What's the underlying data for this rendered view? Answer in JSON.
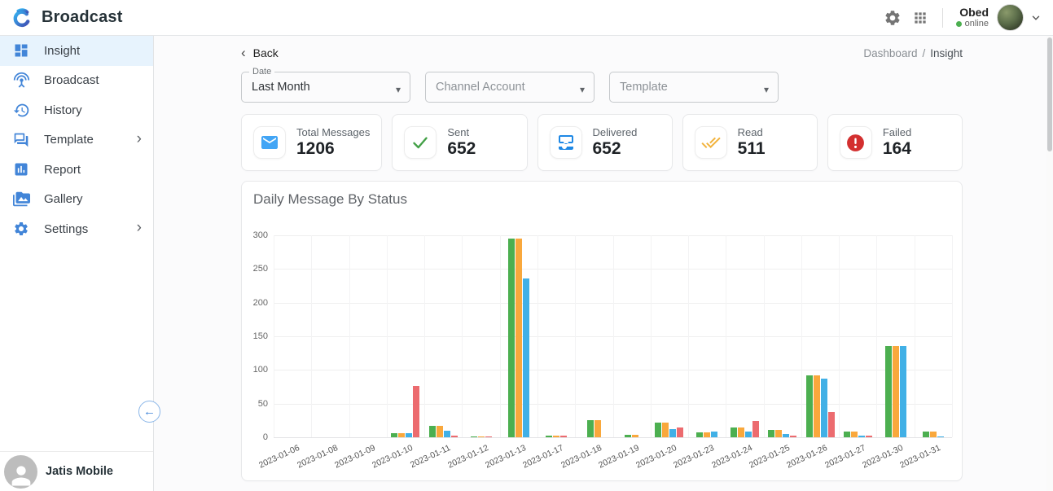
{
  "header": {
    "app_title": "Broadcast",
    "user_name": "Obed",
    "user_status": "online"
  },
  "sidebar": {
    "items": [
      {
        "label": "Insight",
        "icon": "dashboard-icon",
        "active": true,
        "expandable": false
      },
      {
        "label": "Broadcast",
        "icon": "antenna-icon",
        "active": false,
        "expandable": false
      },
      {
        "label": "History",
        "icon": "history-icon",
        "active": false,
        "expandable": false
      },
      {
        "label": "Template",
        "icon": "chat-bubbles-icon",
        "active": false,
        "expandable": true
      },
      {
        "label": "Report",
        "icon": "bar-chart-icon",
        "active": false,
        "expandable": false
      },
      {
        "label": "Gallery",
        "icon": "gallery-icon",
        "active": false,
        "expandable": false
      },
      {
        "label": "Settings",
        "icon": "gear-icon",
        "active": false,
        "expandable": true
      }
    ],
    "footer": {
      "org_name": "Jatis Mobile"
    }
  },
  "toolbar": {
    "back_label": "Back",
    "breadcrumb": {
      "parent": "Dashboard",
      "separator": "/",
      "current": "Insight"
    },
    "filters": [
      {
        "name": "date",
        "label": "Date",
        "value": "Last Month"
      },
      {
        "name": "channel-account",
        "placeholder": "Channel Account"
      },
      {
        "name": "template",
        "placeholder": "Template"
      }
    ]
  },
  "stats": [
    {
      "label": "Total Messages",
      "value": "1206",
      "icon": "envelope-icon",
      "accent": "#42A5F5"
    },
    {
      "label": "Sent",
      "value": "652",
      "icon": "check-icon",
      "accent": "#43A047"
    },
    {
      "label": "Delivered",
      "value": "652",
      "icon": "inbox-icon",
      "accent": "#1E88E5"
    },
    {
      "label": "Read",
      "value": "511",
      "icon": "double-check-icon",
      "accent": "#F2B33D"
    },
    {
      "label": "Failed",
      "value": "164",
      "icon": "error-icon",
      "accent": "#D32F2F"
    }
  ],
  "chart_data": {
    "type": "bar",
    "title": "Daily Message By Status",
    "xlabel": "",
    "ylabel": "",
    "ylim": [
      0,
      300
    ],
    "ytick_step": 50,
    "grid": true,
    "legend_position": "none",
    "categories": [
      "2023-01-06",
      "2023-01-08",
      "2023-01-09",
      "2023-01-10",
      "2023-01-11",
      "2023-01-12",
      "2023-01-13",
      "2023-01-17",
      "2023-01-18",
      "2023-01-19",
      "2023-01-20",
      "2023-01-23",
      "2023-01-24",
      "2023-01-25",
      "2023-01-26",
      "2023-01-27",
      "2023-01-30",
      "2023-01-31"
    ],
    "series": [
      {
        "name": "Sent",
        "color": "#4CAF50",
        "values": [
          0,
          0,
          0,
          6,
          17,
          1,
          295,
          3,
          25,
          4,
          22,
          7,
          15,
          11,
          92,
          9,
          136,
          9
        ]
      },
      {
        "name": "Delivered",
        "color": "#F9A83C",
        "values": [
          0,
          0,
          0,
          6,
          17,
          1,
          295,
          3,
          25,
          4,
          22,
          7,
          15,
          11,
          92,
          9,
          136,
          9
        ]
      },
      {
        "name": "Read",
        "color": "#41B0E6",
        "values": [
          0,
          0,
          0,
          6,
          10,
          0,
          236,
          0,
          0,
          0,
          12,
          8,
          8,
          5,
          87,
          3,
          135,
          1
        ]
      },
      {
        "name": "Failed",
        "color": "#EC6B6F",
        "values": [
          0,
          0,
          0,
          76,
          3,
          1,
          0,
          2,
          0,
          0,
          14,
          0,
          24,
          3,
          38,
          3,
          0,
          0
        ]
      }
    ]
  }
}
